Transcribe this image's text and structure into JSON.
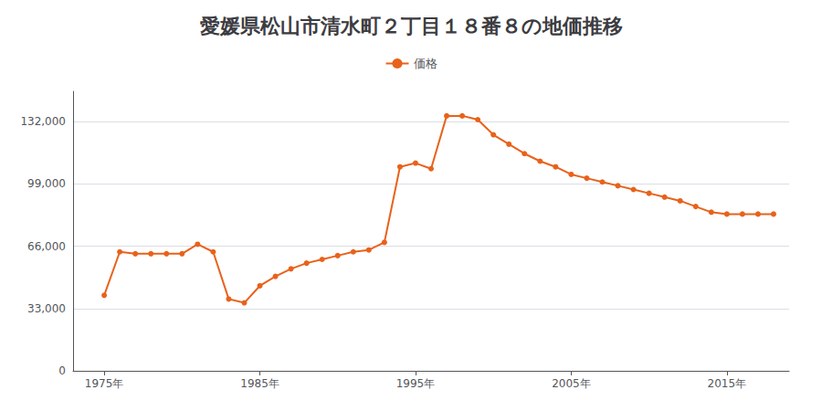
{
  "chart_data": {
    "type": "line",
    "title": "愛媛県松山市清水町２丁目１８番８の地価推移",
    "x": [
      1975,
      1976,
      1977,
      1978,
      1979,
      1980,
      1981,
      1982,
      1983,
      1984,
      1985,
      1986,
      1987,
      1988,
      1989,
      1990,
      1991,
      1992,
      1993,
      1994,
      1995,
      1996,
      1997,
      1998,
      1999,
      2000,
      2001,
      2002,
      2003,
      2004,
      2005,
      2006,
      2007,
      2008,
      2009,
      2010,
      2011,
      2012,
      2013,
      2014,
      2015,
      2016,
      2017,
      2018
    ],
    "series": [
      {
        "name": "価格",
        "color": "#E8621A",
        "marker": "circle",
        "values": [
          40000,
          63000,
          62000,
          62000,
          62000,
          62000,
          67000,
          63000,
          38000,
          36000,
          45000,
          50000,
          54000,
          57000,
          59000,
          61000,
          63000,
          64000,
          68000,
          108000,
          110000,
          107000,
          135000,
          135000,
          133000,
          125000,
          120000,
          115000,
          111000,
          108000,
          104000,
          102000,
          100000,
          98000,
          96000,
          94000,
          92000,
          90000,
          87000,
          84000,
          83000,
          83000,
          83000,
          83000
        ]
      }
    ],
    "xlim": [
      1973,
      2019
    ],
    "xticks": [
      {
        "value": 1975,
        "label": "1975年"
      },
      {
        "value": 1985,
        "label": "1985年"
      },
      {
        "value": 1995,
        "label": "1995年"
      },
      {
        "value": 2005,
        "label": "2005年"
      },
      {
        "value": 2015,
        "label": "2015年"
      }
    ],
    "ylim": [
      0,
      148000
    ],
    "yticks": [
      0,
      {
        "value": 33000,
        "label": "33,000"
      },
      {
        "value": 66000,
        "label": "66,000"
      },
      {
        "value": 99000,
        "label": "99,000"
      },
      {
        "value": 132000,
        "label": "132,000"
      }
    ],
    "grid": true,
    "legend": "top"
  }
}
